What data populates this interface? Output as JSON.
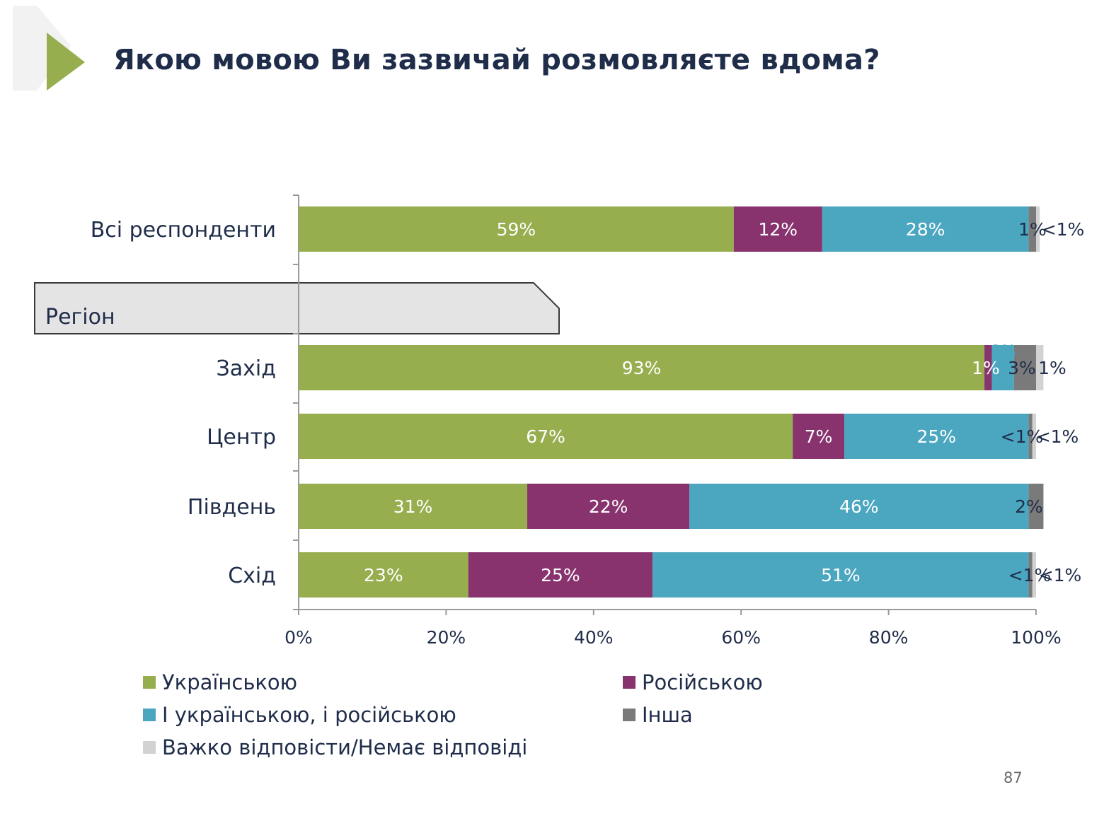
{
  "title": "Якою мовою Ви зазвичай розмовляєте вдома?",
  "page_number": "87",
  "colors": {
    "ukrainian": "#97ae4f",
    "russian": "#88336e",
    "both": "#4ba6bf",
    "other": "#7a7a7a",
    "no_answer": "#d2d2d2",
    "title_text": "#1f2d4a",
    "header_arrow": "#97ae4f",
    "region_tab": "#e4e4e4"
  },
  "region_label": "Регіон",
  "chart_data": {
    "type": "bar",
    "orientation": "horizontal",
    "stacked": true,
    "categories": [
      "Всі респонденти",
      "Захід",
      "Центр",
      "Південь",
      "Схід"
    ],
    "series": [
      {
        "name": "Українською",
        "values": [
          59,
          93,
          67,
          31,
          23
        ],
        "labels": [
          "59%",
          "93%",
          "67%",
          "31%",
          "23%"
        ]
      },
      {
        "name": "Російською",
        "values": [
          12,
          1,
          7,
          22,
          25
        ],
        "labels": [
          "12%",
          "1%",
          "7%",
          "22%",
          "25%"
        ]
      },
      {
        "name": "І українською, і російською",
        "values": [
          28,
          3,
          25,
          46,
          51
        ],
        "labels": [
          "28%",
          "3%",
          "25%",
          "46%",
          "51%"
        ]
      },
      {
        "name": "Інша",
        "values": [
          1,
          3,
          0.5,
          2,
          0.5
        ],
        "labels": [
          "1%",
          "3%",
          "<1%",
          "2%",
          "<1%"
        ]
      },
      {
        "name": "Важко відповісти/Немає відповіді",
        "values": [
          0.5,
          1,
          0.5,
          0,
          0.5
        ],
        "labels": [
          "<1%",
          "1%",
          "<1%",
          "",
          "<1%"
        ]
      }
    ],
    "xlim": [
      0,
      100
    ],
    "x_ticks": [
      "0%",
      "20%",
      "40%",
      "60%",
      "80%",
      "100%"
    ],
    "legend_position": "bottom",
    "grid": false
  }
}
